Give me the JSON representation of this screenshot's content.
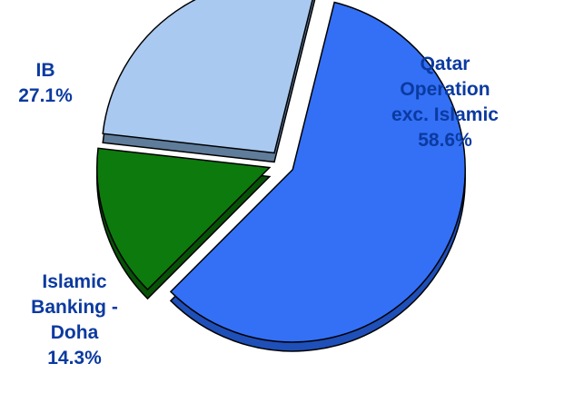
{
  "chart_data": {
    "type": "pie",
    "title": "",
    "label_color": "#0b3aa0",
    "slices": [
      {
        "name_lines": [
          "Qatar",
          "Operation",
          "exc. Islamic"
        ],
        "value": 58.6,
        "value_label": "58.6%",
        "color": "#3370f6",
        "dark": "#1f4fb8"
      },
      {
        "name_lines": [
          "Islamic",
          "Banking -",
          "Doha"
        ],
        "value": 14.3,
        "value_label": "14.3%",
        "color": "#0d7a0d",
        "dark": "#075207"
      },
      {
        "name_lines": [
          "IB"
        ],
        "value": 27.1,
        "value_label": "27.1%",
        "color": "#a9c9f0",
        "dark": "#5f7c9a"
      }
    ]
  }
}
